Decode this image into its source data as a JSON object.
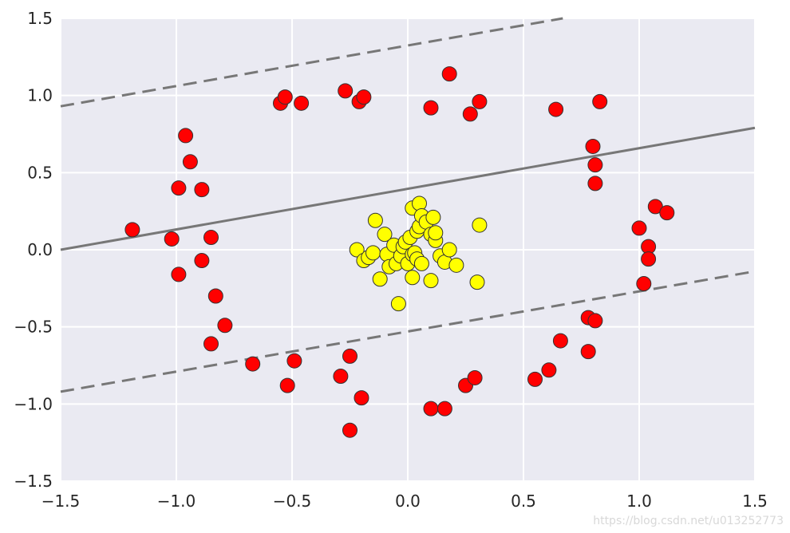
{
  "chart_data": {
    "type": "scatter",
    "xlim": [
      -1.5,
      1.5
    ],
    "ylim": [
      -1.5,
      1.5
    ],
    "x_ticks": [
      "−1.5",
      "−1.0",
      "−0.5",
      "0.0",
      "0.5",
      "1.0",
      "1.5"
    ],
    "x_tick_values": [
      -1.5,
      -1.0,
      -0.5,
      0.0,
      0.5,
      1.0,
      1.5
    ],
    "y_ticks": [
      "1.5",
      "1.0",
      "0.5",
      "0.0",
      "−0.5",
      "−1.0",
      "−1.5"
    ],
    "y_tick_values": [
      1.5,
      1.0,
      0.5,
      0.0,
      -0.5,
      -1.0,
      -1.5
    ],
    "grid": true,
    "background_color": "#eaeaf2",
    "series": [
      {
        "color": "#ff0000",
        "points": [
          [
            -1.19,
            0.13
          ],
          [
            -1.02,
            0.07
          ],
          [
            -0.99,
            0.4
          ],
          [
            -0.96,
            0.74
          ],
          [
            -0.94,
            0.57
          ],
          [
            -0.89,
            0.39
          ],
          [
            -0.99,
            -0.16
          ],
          [
            -0.89,
            -0.07
          ],
          [
            -0.85,
            0.08
          ],
          [
            -0.83,
            -0.3
          ],
          [
            -0.79,
            -0.49
          ],
          [
            -0.85,
            -0.61
          ],
          [
            -0.67,
            -0.74
          ],
          [
            -0.55,
            0.95
          ],
          [
            -0.53,
            0.99
          ],
          [
            -0.46,
            0.95
          ],
          [
            -0.52,
            -0.88
          ],
          [
            -0.49,
            -0.72
          ],
          [
            -0.27,
            1.03
          ],
          [
            -0.21,
            0.96
          ],
          [
            -0.19,
            0.99
          ],
          [
            -0.29,
            -0.82
          ],
          [
            -0.25,
            -0.69
          ],
          [
            -0.2,
            -0.96
          ],
          [
            -0.25,
            -1.17
          ],
          [
            0.1,
            0.92
          ],
          [
            0.18,
            1.14
          ],
          [
            0.27,
            0.88
          ],
          [
            0.31,
            0.96
          ],
          [
            0.1,
            -1.03
          ],
          [
            0.16,
            -1.03
          ],
          [
            0.25,
            -0.88
          ],
          [
            0.29,
            -0.83
          ],
          [
            0.55,
            -0.84
          ],
          [
            0.61,
            -0.78
          ],
          [
            0.66,
            -0.59
          ],
          [
            0.64,
            0.91
          ],
          [
            0.78,
            -0.44
          ],
          [
            0.81,
            -0.46
          ],
          [
            0.78,
            -0.66
          ],
          [
            0.8,
            0.67
          ],
          [
            0.81,
            0.55
          ],
          [
            0.81,
            0.43
          ],
          [
            0.83,
            0.96
          ],
          [
            1.0,
            0.14
          ],
          [
            1.02,
            -0.22
          ],
          [
            1.04,
            0.02
          ],
          [
            1.04,
            -0.06
          ],
          [
            1.07,
            0.28
          ],
          [
            1.12,
            0.24
          ]
        ]
      },
      {
        "color": "#ffff00",
        "points": [
          [
            -0.22,
            0.0
          ],
          [
            -0.19,
            -0.07
          ],
          [
            -0.17,
            -0.05
          ],
          [
            -0.15,
            -0.02
          ],
          [
            -0.14,
            0.19
          ],
          [
            -0.12,
            -0.19
          ],
          [
            -0.1,
            0.1
          ],
          [
            -0.09,
            -0.03
          ],
          [
            -0.08,
            -0.11
          ],
          [
            -0.06,
            0.03
          ],
          [
            -0.05,
            -0.09
          ],
          [
            -0.04,
            -0.35
          ],
          [
            -0.03,
            -0.04
          ],
          [
            -0.02,
            0.02
          ],
          [
            -0.01,
            0.05
          ],
          [
            0.0,
            -0.09
          ],
          [
            0.01,
            0.08
          ],
          [
            0.02,
            -0.03
          ],
          [
            0.02,
            0.27
          ],
          [
            0.02,
            -0.18
          ],
          [
            0.03,
            -0.02
          ],
          [
            0.04,
            0.12
          ],
          [
            0.04,
            -0.06
          ],
          [
            0.05,
            0.3
          ],
          [
            0.05,
            0.15
          ],
          [
            0.06,
            0.22
          ],
          [
            0.06,
            -0.09
          ],
          [
            0.08,
            0.18
          ],
          [
            0.1,
            0.1
          ],
          [
            0.1,
            -0.2
          ],
          [
            0.11,
            0.21
          ],
          [
            0.12,
            0.06
          ],
          [
            0.12,
            0.11
          ],
          [
            0.14,
            -0.04
          ],
          [
            0.16,
            -0.08
          ],
          [
            0.18,
            0.0
          ],
          [
            0.21,
            -0.1
          ],
          [
            0.3,
            -0.21
          ],
          [
            0.31,
            0.16
          ]
        ]
      }
    ],
    "lines": [
      {
        "style": "solid",
        "color": "#777777",
        "points": [
          [
            -1.5,
            0.0
          ],
          [
            1.5,
            0.79
          ]
        ]
      },
      {
        "style": "dashed",
        "color": "#777777",
        "points": [
          [
            -1.5,
            0.93
          ],
          [
            0.67,
            1.5
          ]
        ]
      },
      {
        "style": "dashed",
        "color": "#777777",
        "points": [
          [
            -1.5,
            -0.92
          ],
          [
            1.5,
            -0.14
          ]
        ]
      }
    ]
  },
  "watermark": "https://blog.csdn.net/u013252773"
}
